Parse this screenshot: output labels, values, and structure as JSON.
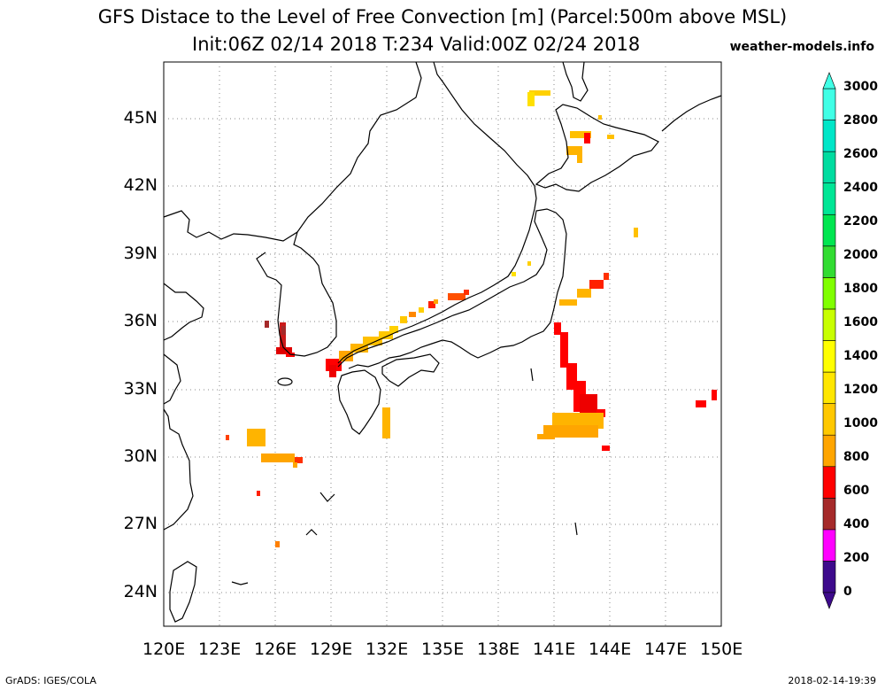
{
  "header": {
    "title_line1": "GFS Distace to the Level of Free Convection [m] (Parcel:500m above MSL)",
    "title_line2": "Init:06Z 02/14 2018 T:234 Valid:00Z 02/24 2018",
    "site": "weather-models.info"
  },
  "map": {
    "lon_range": [
      120,
      150
    ],
    "lat_range": [
      22.5,
      47.5
    ],
    "lon_ticks": [
      "120E",
      "123E",
      "126E",
      "129E",
      "132E",
      "135E",
      "138E",
      "141E",
      "144E",
      "147E",
      "150E"
    ],
    "lat_ticks": [
      "24N",
      "27N",
      "30N",
      "33N",
      "36N",
      "39N",
      "42N",
      "45N"
    ],
    "grid_lines": "dotted"
  },
  "colorbar": {
    "labels": [
      "0",
      "200",
      "400",
      "600",
      "800",
      "1000",
      "1200",
      "1400",
      "1600",
      "1800",
      "2000",
      "2200",
      "2400",
      "2600",
      "2800",
      "3000"
    ],
    "colors": [
      "#3d0a8c",
      "#ff00ff",
      "#a52a2a",
      "#ff0000",
      "#ffa500",
      "#ffc800",
      "#ffe600",
      "#ffff00",
      "#c8ff00",
      "#80ff00",
      "#32dc32",
      "#00e650",
      "#00e696",
      "#00dca0",
      "#00e6c8",
      "#40ffe6"
    ]
  },
  "footer": {
    "left": "GrADS: IGES/COLA",
    "right": "2018-02-14-19:39"
  }
}
